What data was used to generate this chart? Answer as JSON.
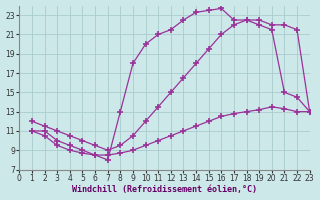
{
  "background_color": "#cce8e8",
  "grid_color": "#aacccc",
  "line_color": "#993399",
  "marker": "+",
  "markersize": 4,
  "linewidth": 0.9,
  "markeredgewidth": 1.2,
  "xlabel": "Windchill (Refroidissement éolien,°C)",
  "xlabel_color": "#660066",
  "xlabel_fontsize": 6,
  "tick_fontsize": 5.5,
  "xlim": [
    0,
    23
  ],
  "ylim": [
    7,
    24
  ],
  "yticks": [
    7,
    9,
    11,
    13,
    15,
    17,
    19,
    21,
    23
  ],
  "xticks": [
    0,
    1,
    2,
    3,
    4,
    5,
    6,
    7,
    8,
    9,
    10,
    11,
    12,
    13,
    14,
    15,
    16,
    17,
    18,
    19,
    20,
    21,
    22,
    23
  ],
  "line1_x": [
    1,
    2,
    3,
    4,
    5,
    6,
    7,
    8,
    9,
    10,
    11,
    12,
    13,
    14,
    15,
    16,
    17,
    18,
    19,
    20,
    21,
    22,
    23
  ],
  "line1_y": [
    11.0,
    11.0,
    10.0,
    9.5,
    9.0,
    8.5,
    8.0,
    13.0,
    18.0,
    20.0,
    21.0,
    21.5,
    22.5,
    23.3,
    23.5,
    23.7,
    22.5,
    22.5,
    22.0,
    21.5,
    15.0,
    14.5,
    13.0
  ],
  "line2_x": [
    1,
    2,
    3,
    4,
    5,
    6,
    7,
    8,
    9,
    10,
    11,
    12,
    13,
    14,
    15,
    16,
    17,
    18,
    19,
    20,
    21,
    22,
    23
  ],
  "line2_y": [
    12.0,
    11.5,
    11.0,
    10.5,
    10.0,
    9.5,
    9.0,
    9.5,
    10.5,
    12.0,
    13.5,
    15.0,
    16.5,
    18.0,
    19.5,
    21.0,
    22.0,
    22.5,
    22.5,
    22.0,
    22.0,
    21.5,
    13.0
  ],
  "line3_x": [
    1,
    2,
    3,
    4,
    5,
    6,
    7,
    8,
    9,
    10,
    11,
    12,
    13,
    14,
    15,
    16,
    17,
    18,
    19,
    20,
    21,
    22,
    23
  ],
  "line3_y": [
    11.0,
    10.5,
    9.5,
    9.0,
    8.7,
    8.5,
    8.5,
    8.7,
    9.0,
    9.5,
    10.0,
    10.5,
    11.0,
    11.5,
    12.0,
    12.5,
    12.8,
    13.0,
    13.2,
    13.5,
    13.3,
    13.0,
    13.0
  ]
}
